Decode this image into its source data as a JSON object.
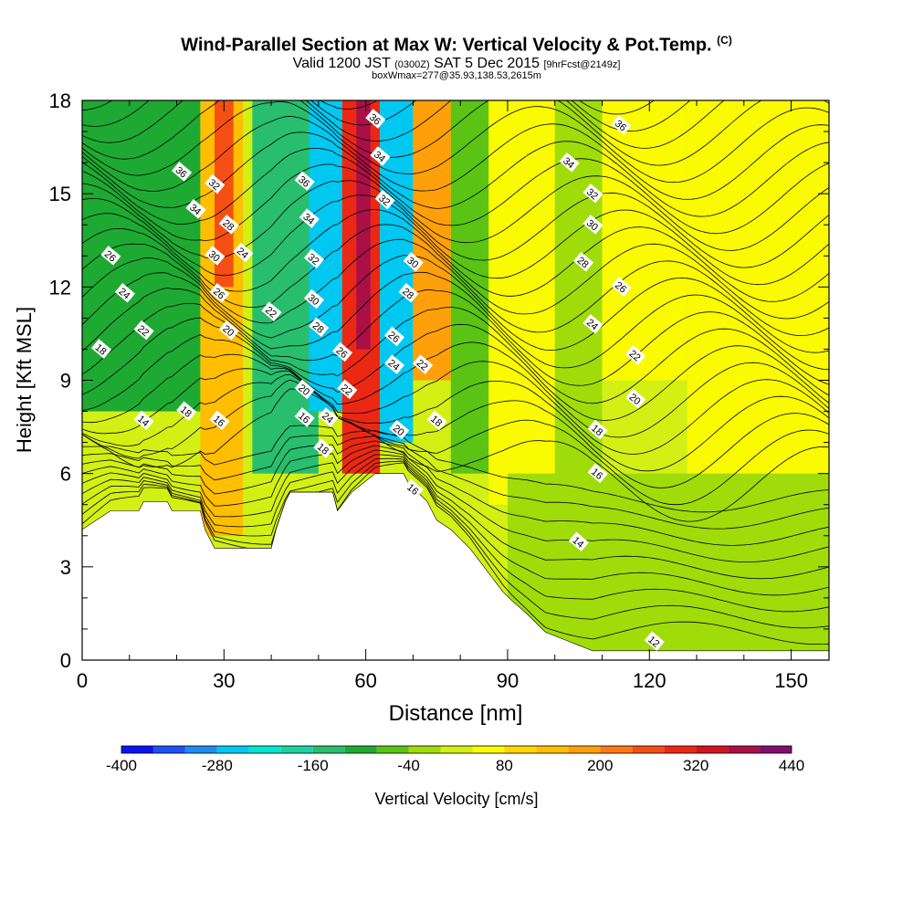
{
  "title": {
    "main": "Wind-Parallel Section at Max W: Vertical Velocity & Pot.Temp.",
    "copyright": "(C)",
    "valid_prefix": "Valid 1200 JST",
    "valid_utc": "(0300Z)",
    "valid_date": "SAT 5 Dec 2015",
    "forecast": "[9hrFcst@2149z]",
    "box_info": "boxWmax=277@35.93,138.53,2615m"
  },
  "chart_data": {
    "type": "heatmap",
    "xlabel": "Distance [nm]",
    "ylabel": "Height [Kft MSL]",
    "xlim": [
      0,
      158
    ],
    "ylim": [
      0,
      18
    ],
    "x_ticks": [
      0,
      30,
      60,
      90,
      120,
      150
    ],
    "y_ticks": [
      0,
      3,
      6,
      9,
      12,
      15,
      18
    ],
    "colorbar": {
      "label": "Vertical Velocity [cm/s]",
      "min": -400,
      "max": 440,
      "step": 40,
      "tick_labels": [
        -400,
        -280,
        -160,
        -40,
        80,
        200,
        320,
        440
      ],
      "colors": [
        "#0a14f0",
        "#1e50f5",
        "#1e8cf0",
        "#00c8f0",
        "#00e6d2",
        "#1ed2a0",
        "#28be6e",
        "#1eaa32",
        "#5ac314",
        "#a0dc0a",
        "#d2f014",
        "#fafa00",
        "#ffd700",
        "#ffbe00",
        "#ffa00a",
        "#ff7814",
        "#f55014",
        "#eb2814",
        "#d2141e",
        "#aa0f46",
        "#820f6e",
        "#5a0a8c"
      ]
    },
    "terrain_profile": [
      [
        0,
        4.2
      ],
      [
        3,
        4.5
      ],
      [
        6,
        4.8
      ],
      [
        12,
        4.8
      ],
      [
        13,
        5.1
      ],
      [
        18,
        5.1
      ],
      [
        19,
        4.8
      ],
      [
        25,
        4.8
      ],
      [
        26,
        4.2
      ],
      [
        28,
        3.6
      ],
      [
        40,
        3.6
      ],
      [
        41,
        4.2
      ],
      [
        43,
        5.1
      ],
      [
        44,
        5.4
      ],
      [
        53,
        5.4
      ],
      [
        54,
        4.8
      ],
      [
        57,
        5.4
      ],
      [
        62,
        6.0
      ],
      [
        68,
        6.0
      ],
      [
        69,
        5.7
      ],
      [
        71,
        5.4
      ],
      [
        73,
        5.1
      ],
      [
        75,
        4.5
      ],
      [
        78,
        4.2
      ],
      [
        80,
        3.9
      ],
      [
        82,
        3.6
      ],
      [
        85,
        3.0
      ],
      [
        87,
        2.6
      ],
      [
        89,
        2.2
      ],
      [
        91,
        1.9
      ],
      [
        94,
        1.5
      ],
      [
        96,
        1.2
      ],
      [
        98,
        0.9
      ],
      [
        103,
        0.6
      ],
      [
        108,
        0.3
      ],
      [
        158,
        0.3
      ]
    ],
    "velocity_regions": [
      {
        "x": [
          0,
          158
        ],
        "y": [
          0,
          18
        ],
        "value": 0
      },
      {
        "x": [
          0,
          25
        ],
        "y": [
          8,
          18
        ],
        "value": -100
      },
      {
        "x": [
          25,
          34
        ],
        "y": [
          4,
          18
        ],
        "value": 150
      },
      {
        "x": [
          28,
          32
        ],
        "y": [
          12,
          18
        ],
        "value": 250
      },
      {
        "x": [
          36,
          50
        ],
        "y": [
          6,
          18
        ],
        "value": -140
      },
      {
        "x": [
          48,
          55
        ],
        "y": [
          8,
          18
        ],
        "value": -250
      },
      {
        "x": [
          55,
          63
        ],
        "y": [
          6,
          18
        ],
        "value": 300
      },
      {
        "x": [
          58,
          61
        ],
        "y": [
          10,
          18
        ],
        "value": 380
      },
      {
        "x": [
          63,
          70
        ],
        "y": [
          7,
          18
        ],
        "value": -260
      },
      {
        "x": [
          70,
          78
        ],
        "y": [
          9,
          18
        ],
        "value": 180
      },
      {
        "x": [
          78,
          86
        ],
        "y": [
          6,
          18
        ],
        "value": -60
      },
      {
        "x": [
          86,
          100
        ],
        "y": [
          5,
          18
        ],
        "value": 40
      },
      {
        "x": [
          100,
          110
        ],
        "y": [
          5,
          18
        ],
        "value": -20
      },
      {
        "x": [
          110,
          128
        ],
        "y": [
          9,
          18
        ],
        "value": 60
      },
      {
        "x": [
          128,
          158
        ],
        "y": [
          2,
          18
        ],
        "value": 40
      },
      {
        "x": [
          90,
          158
        ],
        "y": [
          0.3,
          6
        ],
        "value": -20
      }
    ],
    "isotherm_labels": [
      {
        "x": 4,
        "y": 10.0,
        "label": "18"
      },
      {
        "x": 6,
        "y": 13.0,
        "label": "26"
      },
      {
        "x": 9,
        "y": 11.8,
        "label": "24"
      },
      {
        "x": 13,
        "y": 10.6,
        "label": "22"
      },
      {
        "x": 13,
        "y": 7.7,
        "label": "14"
      },
      {
        "x": 21,
        "y": 15.7,
        "label": "36"
      },
      {
        "x": 22,
        "y": 8.0,
        "label": "18"
      },
      {
        "x": 24,
        "y": 14.5,
        "label": "34"
      },
      {
        "x": 28,
        "y": 15.3,
        "label": "32"
      },
      {
        "x": 28,
        "y": 13.0,
        "label": "30"
      },
      {
        "x": 29,
        "y": 11.8,
        "label": "26"
      },
      {
        "x": 31,
        "y": 14.0,
        "label": "28"
      },
      {
        "x": 31,
        "y": 10.6,
        "label": "20"
      },
      {
        "x": 29,
        "y": 7.7,
        "label": "16"
      },
      {
        "x": 34,
        "y": 13.1,
        "label": "24"
      },
      {
        "x": 40,
        "y": 11.2,
        "label": "22"
      },
      {
        "x": 47,
        "y": 15.4,
        "label": "36"
      },
      {
        "x": 48,
        "y": 14.2,
        "label": "34"
      },
      {
        "x": 49,
        "y": 12.9,
        "label": "32"
      },
      {
        "x": 49,
        "y": 11.6,
        "label": "30"
      },
      {
        "x": 50,
        "y": 10.7,
        "label": "28"
      },
      {
        "x": 47,
        "y": 8.7,
        "label": "20"
      },
      {
        "x": 47,
        "y": 7.8,
        "label": "16"
      },
      {
        "x": 52,
        "y": 7.8,
        "label": "24"
      },
      {
        "x": 51,
        "y": 6.8,
        "label": "18"
      },
      {
        "x": 55,
        "y": 9.9,
        "label": "26"
      },
      {
        "x": 56,
        "y": 8.7,
        "label": "22"
      },
      {
        "x": 62,
        "y": 17.4,
        "label": "36"
      },
      {
        "x": 63,
        "y": 16.2,
        "label": "34"
      },
      {
        "x": 64,
        "y": 14.8,
        "label": "32"
      },
      {
        "x": 66,
        "y": 10.4,
        "label": "26"
      },
      {
        "x": 66,
        "y": 9.5,
        "label": "24"
      },
      {
        "x": 67,
        "y": 7.4,
        "label": "20"
      },
      {
        "x": 70,
        "y": 12.8,
        "label": "30"
      },
      {
        "x": 69,
        "y": 11.8,
        "label": "28"
      },
      {
        "x": 72,
        "y": 9.5,
        "label": "22"
      },
      {
        "x": 75,
        "y": 7.7,
        "label": "18"
      },
      {
        "x": 70,
        "y": 5.5,
        "label": "16"
      },
      {
        "x": 103,
        "y": 16.0,
        "label": "34"
      },
      {
        "x": 108,
        "y": 15.0,
        "label": "32"
      },
      {
        "x": 108,
        "y": 14.0,
        "label": "30"
      },
      {
        "x": 106,
        "y": 12.8,
        "label": "28"
      },
      {
        "x": 108,
        "y": 10.8,
        "label": "24"
      },
      {
        "x": 114,
        "y": 17.2,
        "label": "36"
      },
      {
        "x": 114,
        "y": 12.0,
        "label": "26"
      },
      {
        "x": 117,
        "y": 9.8,
        "label": "22"
      },
      {
        "x": 117,
        "y": 8.4,
        "label": "20"
      },
      {
        "x": 109,
        "y": 7.4,
        "label": "18"
      },
      {
        "x": 109,
        "y": 6.0,
        "label": "16"
      },
      {
        "x": 105,
        "y": 3.8,
        "label": "14"
      },
      {
        "x": 121,
        "y": 0.6,
        "label": "12"
      }
    ]
  }
}
